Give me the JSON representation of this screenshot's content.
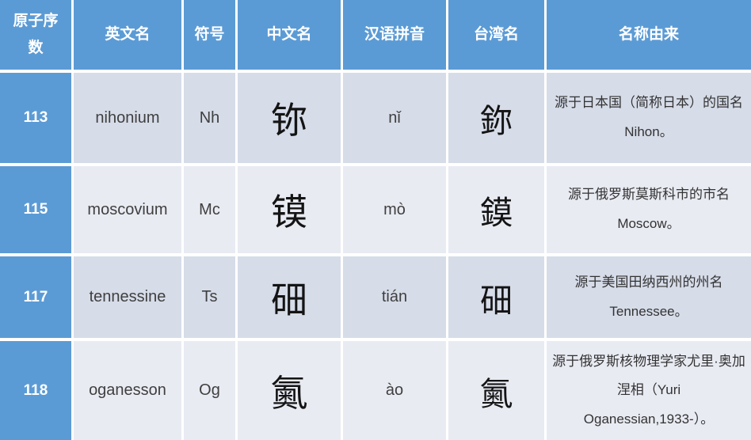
{
  "table": {
    "title_semantic": "superheavy-elements-chinese-naming-table",
    "accent_color": "#5b9bd5",
    "band_dark_color": "#d6dce8",
    "band_light_color": "#e9ebf3",
    "headers": [
      "原子序数",
      "英文名",
      "符号",
      "中文名",
      "汉语拼音",
      "台湾名",
      "名称由来"
    ],
    "rows": [
      {
        "atomic_number": "113",
        "english": "nihonium",
        "symbol": "Nh",
        "chinese": "鿭",
        "pinyin": "nǐ",
        "taiwan": "鉨",
        "origin": "源于日本国（简称日本）的国名Nihon。"
      },
      {
        "atomic_number": "115",
        "english": "moscovium",
        "symbol": "Mc",
        "chinese": "镆",
        "pinyin": "mò",
        "taiwan": "鏌",
        "origin": "源于俄罗斯莫斯科市的市名Moscow。"
      },
      {
        "atomic_number": "117",
        "english": "tennessine",
        "symbol": "Ts",
        "chinese": "鿬",
        "pinyin": "tián",
        "taiwan": "鿬",
        "origin": "源于美国田纳西州的州名Tennessee。"
      },
      {
        "atomic_number": "118",
        "english": "oganesson",
        "symbol": "Og",
        "chinese": "鿫",
        "pinyin": "ào",
        "taiwan": "鿫",
        "origin": "源于俄罗斯核物理学家尤里·奥加涅相（Yuri Oganessian,1933-）。"
      }
    ]
  }
}
